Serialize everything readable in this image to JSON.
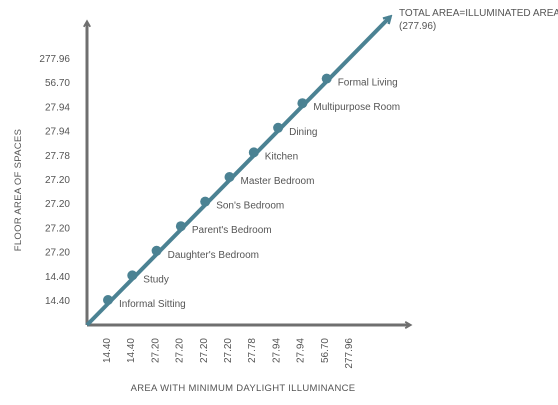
{
  "chart_data": {
    "type": "line",
    "title": "",
    "xlabel": "AREA WITH MINIMUM DAYLIGHT ILLUMINANCE",
    "ylabel": "FLOOR AREA OF SPACES",
    "categories": [
      "14.40",
      "14.40",
      "27.20",
      "27.20",
      "27.20",
      "27.20",
      "27.78",
      "27.94",
      "27.94",
      "56.70",
      "277.96"
    ],
    "y_tick_labels": [
      "14.40",
      "14.40",
      "27.20",
      "27.20",
      "27.20",
      "27.20",
      "27.78",
      "27.94",
      "27.94",
      "56.70",
      "277.96"
    ],
    "points": [
      {
        "label": "Informal Sitting",
        "x": "14.40",
        "y": "14.40"
      },
      {
        "label": "Study",
        "x": "14.40",
        "y": "14.40"
      },
      {
        "label": "Daughter's Bedroom",
        "x": "27.20",
        "y": "27.20"
      },
      {
        "label": "Parent's Bedroom",
        "x": "27.20",
        "y": "27.20"
      },
      {
        "label": "Son's Bedroom",
        "x": "27.20",
        "y": "27.20"
      },
      {
        "label": "Master Bedroom",
        "x": "27.20",
        "y": "27.20"
      },
      {
        "label": "Kitchen",
        "x": "27.78",
        "y": "27.78"
      },
      {
        "label": "Dining",
        "x": "27.94",
        "y": "27.94"
      },
      {
        "label": "Multipurpose Room",
        "x": "27.94",
        "y": "27.94"
      },
      {
        "label": "Formal Living",
        "x": "56.70",
        "y": "56.70"
      }
    ],
    "total_label": [
      "TOTAL AREA=ILLUMINATED AREA",
      "(277.96)"
    ],
    "line_color": "#4b8293",
    "axis_color": "#6f6f6f",
    "grid": false
  }
}
